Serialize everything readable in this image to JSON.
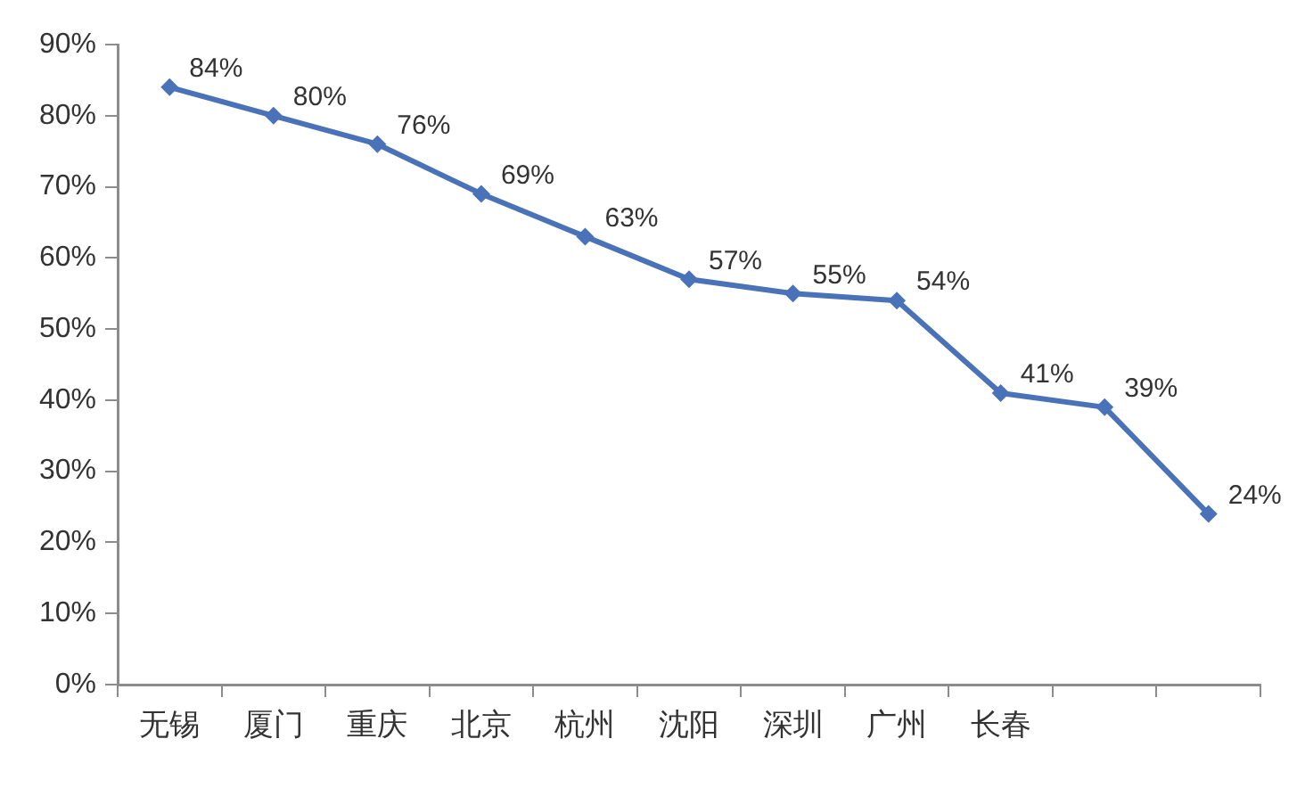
{
  "chart_data": {
    "type": "line",
    "categories": [
      "无锡",
      "厦门",
      "重庆",
      "北京",
      "杭州",
      "沈阳",
      "深圳",
      "广州",
      "长春",
      null,
      null
    ],
    "series": [
      {
        "color": "#4a72b8",
        "values": [
          84,
          80,
          76,
          69,
          63,
          57,
          55,
          54,
          41,
          39,
          24
        ],
        "value_labels": [
          "84%",
          "80%",
          "76%",
          "69%",
          "63%",
          "57%",
          "55%",
          "54%",
          "41%",
          "39%",
          "24%"
        ]
      }
    ],
    "ylim": [
      0,
      90
    ],
    "yticks": [
      {
        "value": 0,
        "label": "0%"
      },
      {
        "value": 10,
        "label": "10%"
      },
      {
        "value": 20,
        "label": "20%"
      },
      {
        "value": 30,
        "label": "30%"
      },
      {
        "value": 40,
        "label": "40%"
      },
      {
        "value": 50,
        "label": "50%"
      },
      {
        "value": 60,
        "label": "60%"
      },
      {
        "value": 70,
        "label": "70%"
      },
      {
        "value": 80,
        "label": "80%"
      },
      {
        "value": 90,
        "label": "90%"
      }
    ],
    "marker": "diamond",
    "line_style": "solid"
  }
}
